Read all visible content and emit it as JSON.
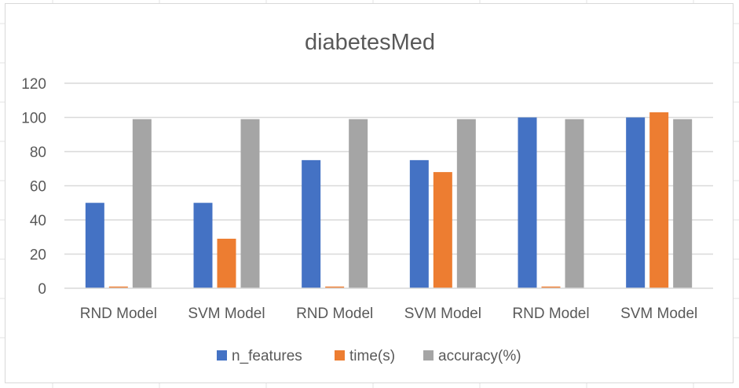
{
  "chart_data": {
    "type": "bar",
    "title": "diabetesMed",
    "xlabel": "",
    "ylabel": "",
    "categories": [
      "RND Model",
      "SVM Model",
      "RND Model",
      "SVM Model",
      "RND Model",
      "SVM Model"
    ],
    "series": [
      {
        "name": "n_features",
        "color": "#4472c4",
        "values": [
          50,
          50,
          75,
          75,
          100,
          100
        ]
      },
      {
        "name": "time(s)",
        "color": "#ed7d31",
        "values": [
          1,
          29,
          1,
          68,
          1,
          103
        ]
      },
      {
        "name": "accuracy(%)",
        "color": "#a5a5a5",
        "values": [
          99,
          99,
          99,
          99,
          99,
          99
        ]
      }
    ],
    "ylim": [
      0,
      120
    ],
    "yticks": [
      "0",
      "20",
      "40",
      "60",
      "80",
      "100",
      "120"
    ],
    "grid": true,
    "legend": "bottom"
  }
}
